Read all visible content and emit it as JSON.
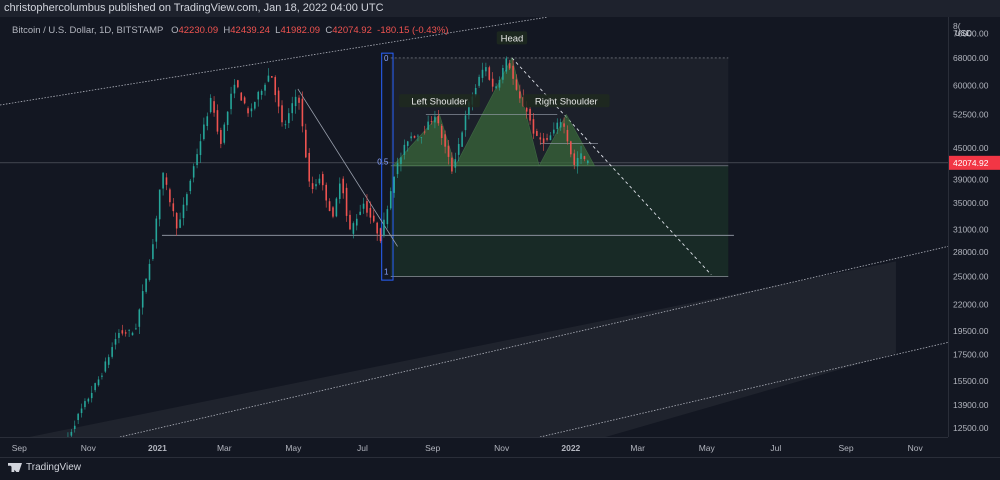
{
  "header": {
    "published": "christophercolumbus published on TradingView.com, Jan 18, 2022 04:00 UTC"
  },
  "legend": {
    "symbol": "Bitcoin / U.S. Dollar, 1D, BITSTAMP",
    "open_label": "O",
    "open": "42230.09",
    "high_label": "H",
    "high": "42439.24",
    "low_label": "L",
    "low": "41982.09",
    "close_label": "C",
    "close": "42074.92",
    "change": "-180.15 (-0.43%)"
  },
  "price_axis": {
    "currency": "USD",
    "top_cut": "8("
  },
  "footer": {
    "brand": "TradingView"
  },
  "colors": {
    "background": "#131722",
    "up": "#26a69a",
    "down": "#ef5350",
    "pattern_fill": "#3a6b3a",
    "box_fill": "#1e3a2a",
    "guide_line": "#9aa0ad",
    "fib_box": "#2962ff",
    "current_price": "#f23645"
  },
  "chart_data": {
    "type": "candlestick",
    "title": "Bitcoin / U.S. Dollar, 1D, BITSTAMP",
    "y_scale": "log",
    "ylim": [
      12000,
      82000
    ],
    "xlim": [
      "2020-08-15",
      "2022-11-30"
    ],
    "x_ticks": [
      {
        "date": "2020-09-01",
        "label": "Sep",
        "bold": false
      },
      {
        "date": "2020-11-01",
        "label": "Nov",
        "bold": false
      },
      {
        "date": "2021-01-01",
        "label": "2021",
        "bold": true
      },
      {
        "date": "2021-03-01",
        "label": "Mar",
        "bold": false
      },
      {
        "date": "2021-05-01",
        "label": "May",
        "bold": false
      },
      {
        "date": "2021-07-01",
        "label": "Jul",
        "bold": false
      },
      {
        "date": "2021-09-01",
        "label": "Sep",
        "bold": false
      },
      {
        "date": "2021-11-01",
        "label": "Nov",
        "bold": false
      },
      {
        "date": "2022-01-01",
        "label": "2022",
        "bold": true
      },
      {
        "date": "2022-03-01",
        "label": "Mar",
        "bold": false
      },
      {
        "date": "2022-05-01",
        "label": "May",
        "bold": false
      },
      {
        "date": "2022-07-01",
        "label": "Jul",
        "bold": false
      },
      {
        "date": "2022-09-01",
        "label": "Sep",
        "bold": false
      },
      {
        "date": "2022-11-01",
        "label": "Nov",
        "bold": false
      }
    ],
    "y_ticks": [
      "76000.00",
      "68000.00",
      "60000.00",
      "52500.00",
      "45000.00",
      "39000.00",
      "35000.00",
      "31000.00",
      "28000.00",
      "25000.00",
      "22000.00",
      "19500.00",
      "17500.00",
      "15500.00",
      "13900.00",
      "12500.00"
    ],
    "last_price": {
      "value": 42074.92,
      "label": "42074.92"
    },
    "price_path": [
      {
        "date": "2020-10-08",
        "price": 10800
      },
      {
        "date": "2020-10-25",
        "price": 13100
      },
      {
        "date": "2020-11-15",
        "price": 15900
      },
      {
        "date": "2020-11-30",
        "price": 19300
      },
      {
        "date": "2020-12-15",
        "price": 19400
      },
      {
        "date": "2020-12-31",
        "price": 29000
      },
      {
        "date": "2021-01-08",
        "price": 40500
      },
      {
        "date": "2021-01-22",
        "price": 31000
      },
      {
        "date": "2021-02-08",
        "price": 44000
      },
      {
        "date": "2021-02-21",
        "price": 57000
      },
      {
        "date": "2021-02-28",
        "price": 45500
      },
      {
        "date": "2021-03-13",
        "price": 61000
      },
      {
        "date": "2021-03-25",
        "price": 52500
      },
      {
        "date": "2021-04-14",
        "price": 64000
      },
      {
        "date": "2021-04-25",
        "price": 49000
      },
      {
        "date": "2021-05-08",
        "price": 58500
      },
      {
        "date": "2021-05-19",
        "price": 36700
      },
      {
        "date": "2021-05-27",
        "price": 39500
      },
      {
        "date": "2021-06-08",
        "price": 32500
      },
      {
        "date": "2021-06-15",
        "price": 40000
      },
      {
        "date": "2021-06-22",
        "price": 30500
      },
      {
        "date": "2021-07-05",
        "price": 35000
      },
      {
        "date": "2021-07-20",
        "price": 29800
      },
      {
        "date": "2021-08-01",
        "price": 40000
      },
      {
        "date": "2021-08-14",
        "price": 47500
      },
      {
        "date": "2021-08-25",
        "price": 48000
      },
      {
        "date": "2021-09-06",
        "price": 52500
      },
      {
        "date": "2021-09-21",
        "price": 40700
      },
      {
        "date": "2021-10-06",
        "price": 55000
      },
      {
        "date": "2021-10-20",
        "price": 66000
      },
      {
        "date": "2021-10-28",
        "price": 58500
      },
      {
        "date": "2021-11-09",
        "price": 68000
      },
      {
        "date": "2021-11-18",
        "price": 57000
      },
      {
        "date": "2021-11-26",
        "price": 53500
      },
      {
        "date": "2021-12-04",
        "price": 47000
      },
      {
        "date": "2021-12-14",
        "price": 46500
      },
      {
        "date": "2021-12-27",
        "price": 51500
      },
      {
        "date": "2022-01-07",
        "price": 41500
      },
      {
        "date": "2022-01-12",
        "price": 43800
      },
      {
        "date": "2022-01-18",
        "price": 42075
      }
    ],
    "annotations": [
      {
        "text": "Head",
        "date": "2021-11-10",
        "price": 74000
      },
      {
        "text": "Left Shoulder",
        "date": "2021-09-07",
        "price": 55500
      },
      {
        "text": "Right Shoulder",
        "date": "2021-12-28",
        "price": 55500
      }
    ],
    "fib_labels": [
      {
        "text": "0",
        "date": "2021-07-22",
        "price": 68000
      },
      {
        "text": "0.5",
        "date": "2021-07-19",
        "price": 42300
      },
      {
        "text": "1",
        "date": "2021-07-22",
        "price": 25600
      }
    ]
  }
}
